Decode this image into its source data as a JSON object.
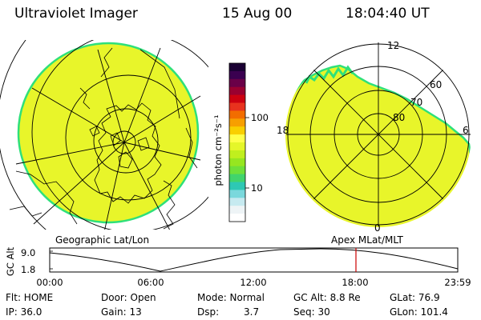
{
  "header": {
    "instrument": "Ultraviolet Imager",
    "date": "15 Aug 00",
    "time": "18:04:40 UT"
  },
  "colorbar": {
    "unit_label": "photon cm⁻²s⁻¹",
    "ticks": [
      "100",
      "10"
    ],
    "colors": [
      "#1a0033",
      "#3a0050",
      "#6a0048",
      "#9a0030",
      "#cc0010",
      "#e8321e",
      "#f26d00",
      "#f79f00",
      "#f9cf00",
      "#ffff4a",
      "#e5f62a",
      "#c0ef1e",
      "#96e620",
      "#6ee03a",
      "#41d46c",
      "#2ec8b4",
      "#7ad8dc",
      "#c6eaf0",
      "#eef4f6",
      "#ffffff"
    ]
  },
  "left_panel": {
    "label": "Geographic Lat/Lon",
    "fill_color": "#e8f52a",
    "edge_color": "#2ee07a"
  },
  "right_panel": {
    "label": "Apex MLat/MLT",
    "fill_color": "#e8f52a",
    "edge_color": "#2ee07a",
    "mlt_labels": {
      "top": "12",
      "left": "18",
      "right": "6",
      "bottom": "0"
    },
    "lat_labels": [
      "60",
      "70",
      "80"
    ]
  },
  "altitude_plot": {
    "ylabel": "GC Alt",
    "y_top": "9.0",
    "y_bottom": "1.8",
    "x_ticks": [
      "00:00",
      "06:00",
      "12:00",
      "18:00",
      "23:59"
    ],
    "marker_color": "#cc0000"
  },
  "footer": {
    "flt": "Flt: HOME",
    "door": "Door: Open",
    "mode": "Mode: Normal",
    "gc_alt": "GC Alt: 8.8 Re",
    "glat": "GLat: 76.9",
    "ip": "IP: 36.0",
    "gain": "Gain: 13",
    "dsp_label": "Dsp:",
    "dsp_value": "3.7",
    "seq": "Seq: 30",
    "glon": "GLon: 101.4"
  }
}
